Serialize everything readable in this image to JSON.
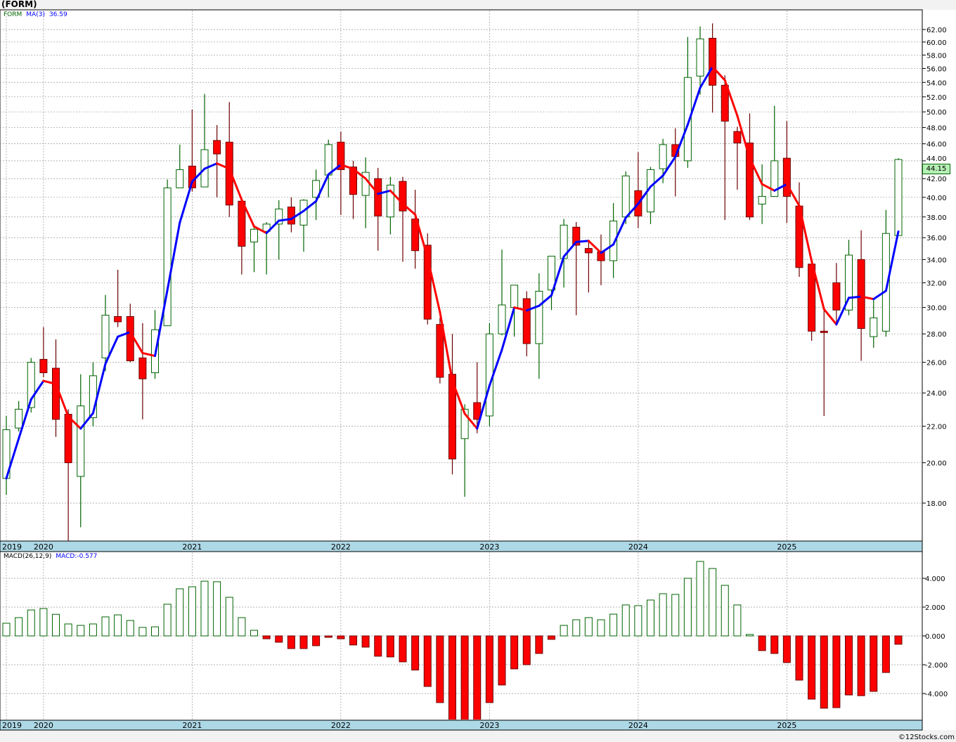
{
  "title": "(FORM)",
  "legend": {
    "symbol": "FORM",
    "ma_label": "MA(3)",
    "ma_value": "36.59"
  },
  "macd_legend": {
    "label": "MACD(26,12,9)",
    "value": "MACD:-0.577"
  },
  "last_price": "44.15",
  "copyright": "©12Stocks.com",
  "colors": {
    "up": "#006400",
    "down": "#ff0000",
    "down_wick": "#6b0000",
    "ma_up": "#0000ff",
    "ma_down": "#ff0000",
    "axis_band": "#add8e6"
  },
  "chart_data": [
    {
      "type": "candlestick",
      "title": "FORM monthly",
      "period": "monthly",
      "scale": "log",
      "ylim": [
        16.2,
        64.5
      ],
      "y_ticks": [
        "18.00",
        "20.00",
        "22.00",
        "24.00",
        "26.00",
        "28.00",
        "30.00",
        "32.00",
        "34.00",
        "36.00",
        "38.00",
        "40.00",
        "42.00",
        "44.00",
        "46.00",
        "48.00",
        "50.00",
        "52.00",
        "54.00",
        "56.00",
        "58.00",
        "60.00",
        "62.00"
      ],
      "x_ticks": [
        {
          "label": "2019",
          "index": 0
        },
        {
          "label": "2020",
          "index": 3
        },
        {
          "label": "2021",
          "index": 15
        },
        {
          "label": "2022",
          "index": 27
        },
        {
          "label": "2023",
          "index": 39
        },
        {
          "label": "2024",
          "index": 51
        },
        {
          "label": "2025",
          "index": 63
        }
      ],
      "ohlc": [
        [
          19.2,
          22.6,
          18.4,
          21.8
        ],
        [
          21.9,
          23.5,
          21.7,
          23.0
        ],
        [
          23.1,
          26.3,
          22.8,
          26.0
        ],
        [
          26.2,
          28.5,
          25.0,
          25.3
        ],
        [
          25.6,
          27.6,
          21.4,
          22.4
        ],
        [
          22.7,
          23.0,
          16.3,
          20.0
        ],
        [
          19.3,
          25.2,
          16.9,
          23.2
        ],
        [
          22.5,
          26.0,
          22.0,
          25.1
        ],
        [
          26.3,
          31.0,
          25.4,
          29.4
        ],
        [
          29.3,
          33.1,
          28.5,
          28.9
        ],
        [
          29.3,
          30.3,
          26.0,
          26.1
        ],
        [
          26.3,
          28.8,
          22.4,
          24.9
        ],
        [
          25.3,
          29.8,
          24.9,
          28.3
        ],
        [
          28.6,
          41.9,
          28.6,
          41.0
        ],
        [
          41.0,
          45.9,
          41.0,
          43.0
        ],
        [
          43.4,
          50.3,
          40.6,
          41.0
        ],
        [
          41.1,
          52.4,
          41.1,
          45.3
        ],
        [
          46.4,
          48.3,
          40.0,
          44.8
        ],
        [
          46.2,
          51.3,
          38.0,
          39.2
        ],
        [
          39.6,
          39.6,
          32.7,
          35.2
        ],
        [
          35.6,
          37.1,
          32.9,
          36.8
        ],
        [
          36.6,
          37.5,
          32.7,
          37.3
        ],
        [
          37.3,
          39.7,
          34.0,
          38.8
        ],
        [
          39.0,
          40.0,
          36.5,
          37.3
        ],
        [
          37.2,
          39.8,
          34.7,
          39.7
        ],
        [
          40.0,
          43.0,
          37.7,
          41.8
        ],
        [
          42.4,
          46.5,
          40.0,
          45.9
        ],
        [
          46.2,
          47.5,
          38.2,
          43.0
        ],
        [
          43.3,
          44.0,
          37.8,
          40.3
        ],
        [
          40.2,
          44.4,
          36.9,
          42.7
        ],
        [
          42.0,
          43.2,
          34.8,
          38.1
        ],
        [
          38.0,
          42.2,
          36.3,
          41.3
        ],
        [
          41.7,
          42.2,
          33.8,
          38.6
        ],
        [
          37.8,
          40.8,
          33.2,
          34.8
        ],
        [
          35.3,
          36.4,
          28.7,
          29.1
        ],
        [
          28.7,
          29.2,
          24.6,
          25.0
        ],
        [
          25.2,
          28.0,
          19.4,
          20.2
        ],
        [
          21.3,
          23.3,
          18.3,
          23.0
        ],
        [
          23.4,
          26.0,
          21.6,
          22.4
        ],
        [
          22.6,
          28.8,
          22.0,
          28.0
        ],
        [
          28.0,
          34.9,
          27.9,
          30.2
        ],
        [
          30.0,
          31.8,
          27.8,
          31.8
        ],
        [
          30.7,
          31.3,
          26.4,
          27.3
        ],
        [
          27.3,
          32.8,
          24.9,
          31.3
        ],
        [
          31.4,
          34.3,
          29.8,
          34.3
        ],
        [
          34.1,
          37.8,
          31.6,
          37.2
        ],
        [
          37.0,
          37.5,
          29.4,
          35.3
        ],
        [
          35.0,
          35.7,
          31.2,
          34.6
        ],
        [
          34.7,
          36.3,
          31.8,
          33.9
        ],
        [
          33.9,
          39.4,
          32.4,
          37.6
        ],
        [
          38.0,
          42.8,
          37.3,
          42.3
        ],
        [
          40.7,
          45.0,
          36.9,
          38.1
        ],
        [
          38.5,
          43.3,
          37.3,
          43.0
        ],
        [
          43.1,
          46.6,
          41.5,
          45.9
        ],
        [
          45.9,
          47.9,
          40.1,
          44.5
        ],
        [
          44.0,
          60.8,
          43.2,
          54.7
        ],
        [
          54.9,
          62.5,
          52.3,
          60.5
        ],
        [
          60.6,
          63.0,
          49.9,
          53.6
        ],
        [
          53.6,
          55.0,
          37.7,
          48.8
        ],
        [
          47.5,
          48.1,
          40.8,
          46.1
        ],
        [
          46.1,
          49.8,
          37.7,
          38.0
        ],
        [
          39.3,
          43.6,
          37.3,
          40.1
        ],
        [
          40.1,
          50.8,
          40.1,
          44.0
        ],
        [
          44.3,
          48.8,
          37.4,
          40.1
        ],
        [
          39.1,
          41.6,
          32.5,
          33.3
        ],
        [
          33.6,
          33.6,
          27.5,
          28.2
        ],
        [
          28.2,
          30.0,
          22.6,
          28.1
        ],
        [
          32.0,
          33.7,
          28.8,
          29.8
        ],
        [
          29.8,
          35.8,
          29.4,
          34.4
        ],
        [
          34.0,
          36.7,
          26.1,
          28.4
        ],
        [
          27.8,
          30.7,
          27.0,
          29.2
        ],
        [
          28.2,
          38.7,
          27.8,
          36.4
        ],
        [
          36.2,
          44.3,
          36.2,
          44.15
        ]
      ],
      "ma3_first": [
        19.2,
        21.3
      ]
    },
    {
      "type": "bar",
      "title": "MACD(26,12,9)",
      "ylim": [
        -5.85,
        5.9
      ],
      "y_ticks": [
        "4.000",
        "2.000",
        "0.000",
        "-2.000",
        "-4.000"
      ],
      "y_tick_values": [
        4,
        2,
        0,
        -2,
        -4
      ],
      "values": [
        0.88,
        1.27,
        1.8,
        1.9,
        1.5,
        0.83,
        0.73,
        0.83,
        1.32,
        1.46,
        1.07,
        0.59,
        0.63,
        2.2,
        3.27,
        3.41,
        3.8,
        3.76,
        2.68,
        1.27,
        0.39,
        -0.2,
        -0.44,
        -0.88,
        -0.88,
        -0.68,
        -0.1,
        -0.2,
        -0.63,
        -0.78,
        -1.41,
        -1.46,
        -1.8,
        -2.37,
        -3.51,
        -4.63,
        -6.0,
        -6.2,
        -5.9,
        -4.63,
        -3.41,
        -2.29,
        -2.0,
        -1.22,
        -0.24,
        0.73,
        1.12,
        1.27,
        1.12,
        1.51,
        2.15,
        2.1,
        2.49,
        2.93,
        2.88,
        4.0,
        5.17,
        4.68,
        3.51,
        2.15,
        0.1,
        -1.02,
        -1.22,
        -1.85,
        -3.07,
        -4.39,
        -5.02,
        -4.98,
        -4.1,
        -4.15,
        -3.85,
        -2.54,
        -0.58
      ]
    }
  ]
}
